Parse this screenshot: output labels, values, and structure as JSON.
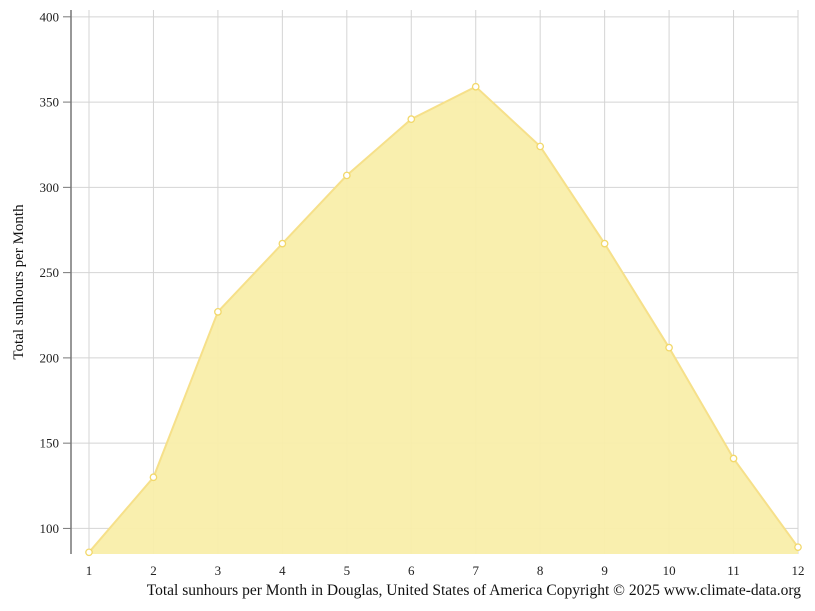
{
  "chart_data": {
    "type": "area",
    "x": [
      1,
      2,
      3,
      4,
      5,
      6,
      7,
      8,
      9,
      10,
      11,
      12
    ],
    "series": [
      {
        "values": [
          86,
          130,
          227,
          267,
          307,
          340,
          359,
          324,
          267,
          206,
          141,
          89
        ]
      }
    ],
    "ylabel": "Total sunhours per Month",
    "caption": "Total sunhours per Month in Douglas, United States of America Copyright © 2025 www.climate-data.org",
    "ylim": [
      85,
      404
    ],
    "xlim": [
      1,
      12
    ],
    "yticks": [
      100,
      150,
      200,
      250,
      300,
      350,
      400
    ],
    "xticks": [
      1,
      2,
      3,
      4,
      5,
      6,
      7,
      8,
      9,
      10,
      11,
      12
    ],
    "grid": true,
    "colors": {
      "fill": "#f9eeaa",
      "line": "#f6e08a",
      "marker_fill": "#ffffff",
      "marker_stroke": "#f2d86a",
      "grid": "#d4d4d4",
      "axis": "#777777"
    }
  }
}
